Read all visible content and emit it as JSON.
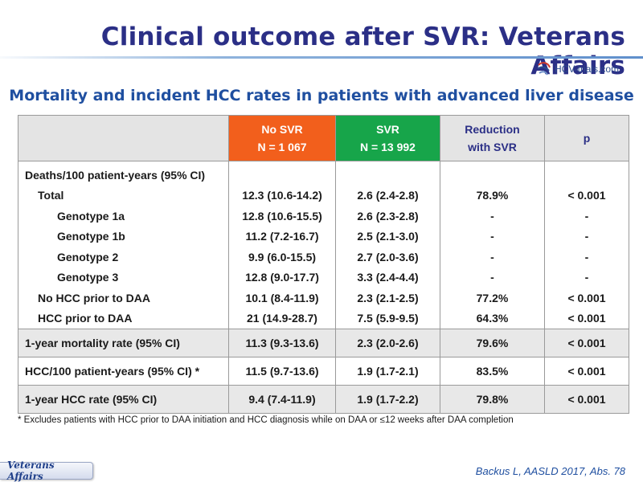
{
  "title": "Clinical outcome after SVR: Veterans Affairs",
  "logo": {
    "text": "HCV-trials.com",
    "icon": "hcv-trials-logo-icon"
  },
  "subtitle": "Mortality and incident HCC rates in patients with advanced liver disease",
  "colors": {
    "no_svr": "#f25f1c",
    "svr": "#17a54a",
    "title": "#2b2f86",
    "subtitle": "#1f4fa0"
  },
  "table": {
    "headers": {
      "no_svr_label": "No SVR",
      "no_svr_n": "N = 1 067",
      "svr_label": "SVR",
      "svr_n": "N = 13 992",
      "reduction_line1": "Reduction",
      "reduction_line2": "with SVR",
      "p": "p"
    },
    "section_label": "Deaths/100 patient-years (95% CI)",
    "rows": [
      {
        "label": "Total",
        "no_svr": "12.3 (10.6-14.2)",
        "svr": "2.6 (2.4-2.8)",
        "reduction": "78.9%",
        "p": "< 0.001"
      },
      {
        "label": "Genotype 1a",
        "no_svr": "12.8 (10.6-15.5)",
        "svr": "2.6 (2.3-2.8)",
        "reduction": "-",
        "p": "-"
      },
      {
        "label": "Genotype 1b",
        "no_svr": "11.2 (7.2-16.7)",
        "svr": "2.5 (2.1-3.0)",
        "reduction": "-",
        "p": "-"
      },
      {
        "label": "Genotype 2",
        "no_svr": "9.9 (6.0-15.5)",
        "svr": "2.7 (2.0-3.6)",
        "reduction": "-",
        "p": "-"
      },
      {
        "label": "Genotype 3",
        "no_svr": "12.8 (9.0-17.7)",
        "svr": "3.3 (2.4-4.4)",
        "reduction": "-",
        "p": "-"
      },
      {
        "label": "No HCC prior to DAA",
        "no_svr": "10.1 (8.4-11.9)",
        "svr": "2.3 (2.1-2.5)",
        "reduction": "77.2%",
        "p": "< 0.001"
      },
      {
        "label": "HCC prior to DAA",
        "no_svr": "21 (14.9-28.7)",
        "svr": "7.5 (5.9-9.5)",
        "reduction": "64.3%",
        "p": "< 0.001"
      }
    ],
    "summary_rows": [
      {
        "label": "1-year mortality rate (95% CI)",
        "no_svr": "11.3 (9.3-13.6)",
        "svr": "2.3 (2.0-2.6)",
        "reduction": "79.6%",
        "p": "< 0.001"
      },
      {
        "label": "HCC/100 patient-years (95% CI) *",
        "no_svr": "11.5 (9.7-13.6)",
        "svr": "1.9 (1.7-2.1)",
        "reduction": "83.5%",
        "p": "< 0.001"
      },
      {
        "label": "1-year HCC rate (95% CI)",
        "no_svr": "9.4 (7.4-11.9)",
        "svr": "1.9 (1.7-2.2)",
        "reduction": "79.8%",
        "p": "< 0.001"
      }
    ]
  },
  "footnote": "* Excludes patients with HCC prior to DAA initiation and HCC diagnosis while on DAA or ≤12 weeks after DAA completion",
  "footer": {
    "tag": "Veterans Affairs",
    "citation": "Backus L, AASLD 2017, Abs. 78"
  }
}
